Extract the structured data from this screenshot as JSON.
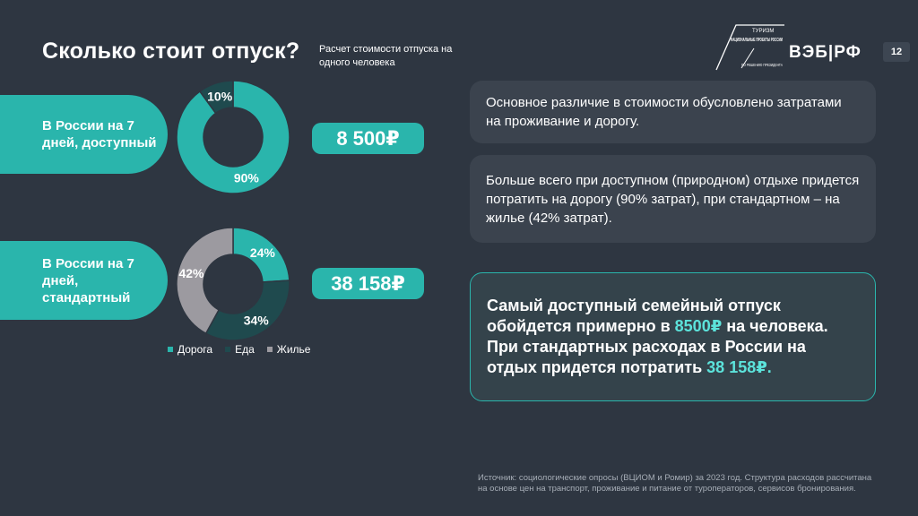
{
  "header": {
    "title": "Сколько стоит отпуск?",
    "subtitle": "Расчет стоимости отпуска на одного человека",
    "page_number": "12"
  },
  "logos": {
    "turizm_top": "ТУРИЗМ",
    "turizm_main": "НАЦИОНАЛЬНЫЕ ПРОЕКТЫ РОССИИ",
    "turizm_sub": "ПО РЕШЕНИЮ ПРЕЗИДЕНТА",
    "veb": "ВЭБ|РФ"
  },
  "rows": [
    {
      "label": "В России на 7 дней, доступный",
      "price": "8 500₽"
    },
    {
      "label": "В России на 7 дней, стандартный",
      "price": "38 158₽"
    }
  ],
  "chart_data": [
    {
      "type": "pie",
      "categories": [
        "Дорога",
        "Жилье"
      ],
      "values": [
        90,
        10
      ],
      "labels": [
        "90%",
        "10%"
      ],
      "colors": [
        "#2ab5ac",
        "#1f4a4e"
      ]
    },
    {
      "type": "pie",
      "categories": [
        "Дорога",
        "Еда",
        "Жилье"
      ],
      "values": [
        24,
        34,
        42
      ],
      "labels": [
        "24%",
        "34%",
        "42%"
      ],
      "colors": [
        "#2ab5ac",
        "#1f4a4e",
        "#9c9aa0"
      ]
    }
  ],
  "legend": [
    {
      "label": "Дорога",
      "color": "#2ab5ac"
    },
    {
      "label": "Еда",
      "color": "#1f4a4e"
    },
    {
      "label": "Жилье",
      "color": "#9c9aa0"
    }
  ],
  "cards": {
    "card1": "Основное различие в стоимости обусловлено затратами на проживание и дорогу.",
    "card2": "Больше всего при доступном (природном) отдыхе придется потратить на дорогу (90% затрат), при стандартном – на жилье (42% затрат).",
    "card3_a": "Самый доступный семейный отпуск обойдется примерно в ",
    "card3_hl1": "8500₽",
    "card3_b": " на человека. При стандартных расходах в России на отдых придется потратить ",
    "card3_hl2": "38 158₽."
  },
  "source": "Источник: социологические опросы (ВЦИОМ и Ромир) за 2023 год. Структура расходов рассчитана на основе цен на транспорт, проживание и питание от туроператоров, сервисов бронирования.",
  "colors": {
    "accent": "#2ab5ac",
    "background": "#2e3641",
    "card": "#3b434e"
  }
}
